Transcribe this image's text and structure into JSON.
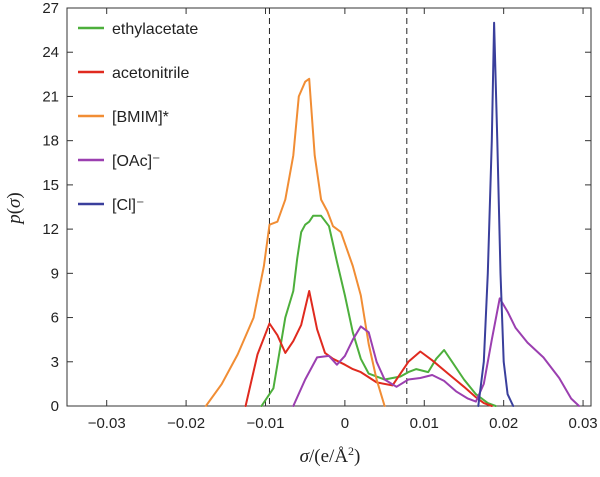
{
  "chart_data": {
    "type": "line",
    "title": "",
    "xlabel_html": "σ/(e/Å²)",
    "xlabel_parts": {
      "sigma": "σ",
      "rest": "/(e/Å",
      "sup": "2",
      "close": ")"
    },
    "ylabel_parts": {
      "p": "p",
      "open": "(",
      "sigma": "σ",
      "close": ")"
    },
    "xlim": [
      -0.035,
      0.031
    ],
    "ylim": [
      0,
      27
    ],
    "xticks": [
      -0.03,
      -0.02,
      -0.01,
      0,
      0.01,
      0.02,
      0.03
    ],
    "xtick_labels": [
      "−0.03",
      "−0.02",
      "−0.01",
      "0",
      "0.01",
      "0.02",
      "0.03"
    ],
    "yticks": [
      0,
      3,
      6,
      9,
      12,
      15,
      18,
      21,
      24,
      27
    ],
    "ytick_labels": [
      "0",
      "3",
      "6",
      "9",
      "12",
      "15",
      "18",
      "21",
      "24",
      "27"
    ],
    "vlines": [
      -0.0095,
      0.0078
    ],
    "legend_position": "top-left",
    "series": [
      {
        "name": "ethylacetate",
        "color": "#4daf3c",
        "x": [
          -0.0105,
          -0.009,
          -0.0075,
          -0.0065,
          -0.006,
          -0.0055,
          -0.005,
          -0.0045,
          -0.004,
          -0.003,
          -0.002,
          -0.0015,
          -0.001,
          0.0,
          0.001,
          0.002,
          0.003,
          0.005,
          0.007,
          0.008,
          0.009,
          0.0105,
          0.0115,
          0.0125,
          0.0135,
          0.015,
          0.0165,
          0.018,
          0.019
        ],
        "y": [
          0,
          1.2,
          6.0,
          7.8,
          10.0,
          11.8,
          12.3,
          12.5,
          12.9,
          12.9,
          12.2,
          11.0,
          9.8,
          7.5,
          5.0,
          3.2,
          2.2,
          1.8,
          2.0,
          2.3,
          2.5,
          2.3,
          3.2,
          3.8,
          3.0,
          1.8,
          0.8,
          0.2,
          0
        ]
      },
      {
        "name": "acetonitrile",
        "color": "#e02a1f",
        "x": [
          -0.0125,
          -0.011,
          -0.0095,
          -0.0085,
          -0.0075,
          -0.0065,
          -0.0055,
          -0.0045,
          -0.0035,
          -0.0025,
          -0.0015,
          0.0,
          0.001,
          0.002,
          0.004,
          0.006,
          0.008,
          0.0095,
          0.011,
          0.013,
          0.015,
          0.0165,
          0.0175,
          0.0185
        ],
        "y": [
          0,
          3.5,
          5.6,
          4.8,
          3.6,
          4.4,
          5.5,
          7.8,
          5.2,
          3.6,
          3.2,
          2.8,
          2.5,
          2.3,
          1.6,
          1.4,
          3.0,
          3.7,
          3.1,
          2.2,
          1.3,
          0.6,
          0.2,
          0
        ]
      },
      {
        "name": "[BMIM]*",
        "color": "#f18d34",
        "x": [
          -0.0175,
          -0.0155,
          -0.0135,
          -0.0115,
          -0.0102,
          -0.0095,
          -0.0085,
          -0.0075,
          -0.0065,
          -0.0058,
          -0.005,
          -0.0045,
          -0.0038,
          -0.003,
          -0.0022,
          -0.0015,
          -0.0005,
          0.001,
          0.002,
          0.003,
          0.004,
          0.005
        ],
        "y": [
          0,
          1.5,
          3.5,
          6.0,
          9.5,
          12.3,
          12.5,
          14.0,
          17.0,
          21.0,
          22.0,
          22.2,
          17.0,
          14.0,
          13.2,
          12.2,
          11.8,
          9.5,
          7.5,
          4.2,
          1.8,
          0
        ]
      },
      {
        "name": "[OAc]⁻",
        "color": "#9b3fb0",
        "x": [
          -0.0065,
          -0.005,
          -0.0035,
          -0.002,
          -0.001,
          0.0,
          0.001,
          0.002,
          0.003,
          0.004,
          0.005,
          0.0065,
          0.008,
          0.0095,
          0.011,
          0.0125,
          0.014,
          0.0155,
          0.0165,
          0.0175,
          0.0185,
          0.0195,
          0.0205,
          0.0215,
          0.023,
          0.025,
          0.027,
          0.0285,
          0.0295
        ],
        "y": [
          0,
          1.8,
          3.3,
          3.4,
          2.8,
          3.4,
          4.5,
          5.4,
          5.0,
          3.0,
          1.8,
          1.3,
          1.8,
          1.9,
          2.1,
          1.7,
          1.0,
          0.5,
          0.3,
          1.5,
          4.5,
          7.3,
          6.4,
          5.3,
          4.3,
          3.3,
          1.9,
          0.5,
          0
        ]
      },
      {
        "name": "[Cl]⁻",
        "color": "#3a3f9c",
        "x": [
          0.0168,
          0.0175,
          0.018,
          0.0185,
          0.0188,
          0.0192,
          0.0196,
          0.02,
          0.0205,
          0.0212
        ],
        "y": [
          0,
          3.0,
          9.0,
          18.0,
          26.0,
          18.0,
          9.0,
          3.0,
          0.8,
          0
        ]
      }
    ]
  }
}
